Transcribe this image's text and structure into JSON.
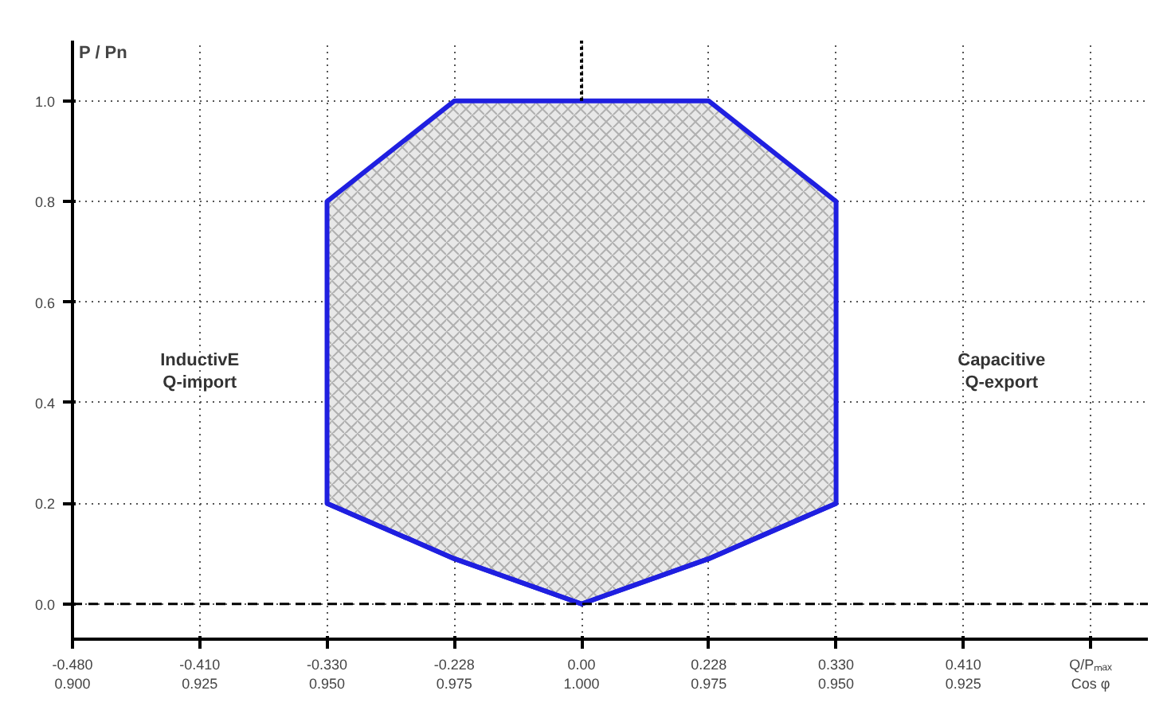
{
  "chart_data": {
    "type": "area",
    "categories": [
      "-0.480\n0.900",
      "-0.410\n0.925",
      "-0.330\n0.950",
      "-0.228\n0.975",
      "0.00\n1.000",
      "0.228\n0.975",
      "0.330\n0.950",
      "0.410\n0.925"
    ],
    "series": [
      {
        "color": "#1f1fe0",
        "values": [
          null,
          null,
          0.8,
          1.0,
          1.0,
          1.0,
          0.8,
          null
        ]
      },
      {
        "type": "line",
        "color": "#1f1fe0",
        "values": [
          null,
          null,
          0.2,
          0.09,
          0.0,
          0.09,
          0.2,
          null
        ]
      }
    ],
    "xlabel": "Q/Pₘₐₓ\nCos φ",
    "ylabel": "P / Pn",
    "ylim": [
      -0.07,
      1.12
    ],
    "yticks": [
      {
        "value": 0,
        "label": "0.0"
      },
      0.2,
      0.4,
      0.6,
      0.8,
      {
        "value": 1,
        "label": "1.0"
      }
    ],
    "ref_lines": [
      {
        "axis": "y",
        "value": 0,
        "line_style": "dashed"
      },
      {
        "axis": "x",
        "value": "0.00\n1.000",
        "line_style": "dotted"
      }
    ],
    "annotations": [
      "InductivE\nQ-import",
      "Capacitive\nQ-export"
    ],
    "grid": true
  }
}
